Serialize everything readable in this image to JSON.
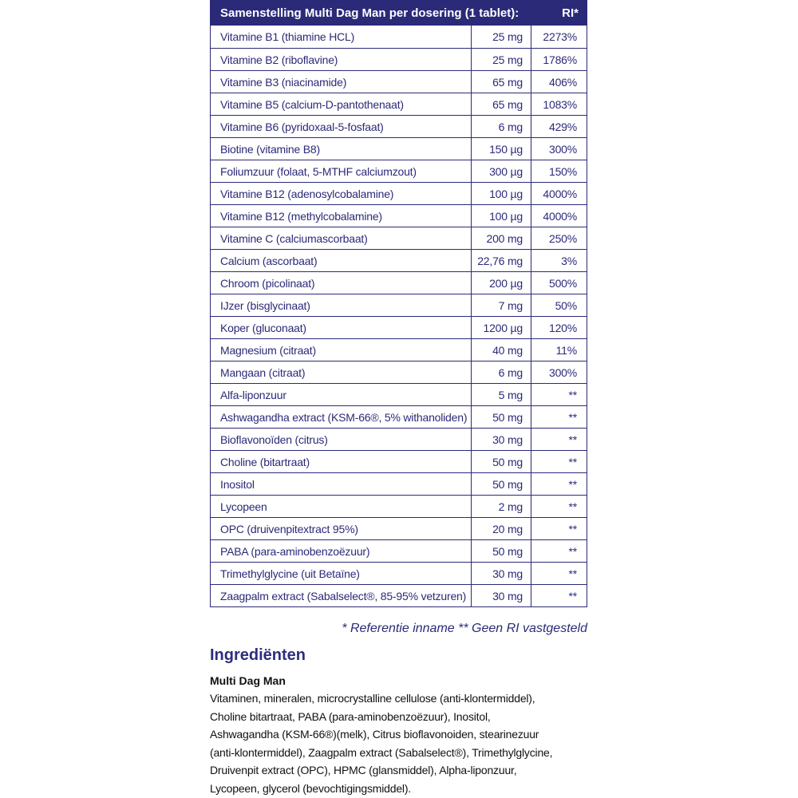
{
  "table": {
    "header": [
      "Samenstelling Multi Dag Man per dosering (1 tablet):",
      "RI*"
    ],
    "rows": [
      [
        "Vitamine B1 (thiamine HCL)",
        "25 mg",
        "2273%"
      ],
      [
        "Vitamine B2 (riboflavine)",
        "25 mg",
        "1786%"
      ],
      [
        "Vitamine B3 (niacinamide)",
        "65 mg",
        "406%"
      ],
      [
        "Vitamine B5 (calcium-D-pantothenaat)",
        "65 mg",
        "1083%"
      ],
      [
        "Vitamine B6 (pyridoxaal-5-fosfaat)",
        "6 mg",
        "429%"
      ],
      [
        "Biotine (vitamine B8)",
        "150 µg",
        "300%"
      ],
      [
        "Foliumzuur (folaat, 5-MTHF calciumzout)",
        "300 µg",
        "150%"
      ],
      [
        "Vitamine B12 (adenosylcobalamine)",
        "100 µg",
        "4000%"
      ],
      [
        "Vitamine B12 (methylcobalamine)",
        "100 µg",
        "4000%"
      ],
      [
        "Vitamine C (calciumascorbaat)",
        "200 mg",
        "250%"
      ],
      [
        "Calcium (ascorbaat)",
        "22,76 mg",
        "3%"
      ],
      [
        "Chroom (picolinaat)",
        "200 µg",
        "500%"
      ],
      [
        "IJzer (bisglycinaat)",
        "7 mg",
        "50%"
      ],
      [
        "Koper (gluconaat)",
        "1200 µg",
        "120%"
      ],
      [
        "Magnesium (citraat)",
        "40 mg",
        "11%"
      ],
      [
        "Mangaan (citraat)",
        "6 mg",
        "300%"
      ],
      [
        "Alfa-liponzuur",
        "5 mg",
        "**"
      ],
      [
        "Ashwagandha extract (KSM-66®, 5% withanoliden)",
        "50 mg",
        "**"
      ],
      [
        "Bioflavonoïden (citrus)",
        "30 mg",
        "**"
      ],
      [
        "Choline (bitartraat)",
        "50 mg",
        "**"
      ],
      [
        "Inositol",
        "50 mg",
        "**"
      ],
      [
        "Lycopeen",
        "2 mg",
        "**"
      ],
      [
        "OPC (druivenpitextract 95%)",
        "20 mg",
        "**"
      ],
      [
        "PABA (para-aminobenzoëzuur)",
        "50 mg",
        "**"
      ],
      [
        "Trimethylglycine (uit Betaïne)",
        "30 mg",
        "**"
      ],
      [
        "Zaagpalm extract (Sabalselect®, 85-95% vetzuren)",
        "30 mg",
        "**"
      ]
    ],
    "footnote": "* Referentie inname  ** Geen RI vastgesteld"
  },
  "ingredients": {
    "title": "Ingrediënten",
    "subtitle": "Multi Dag Man",
    "lines": [
      "Vitaminen, mineralen, microcrystalline cellulose (anti-klontermiddel),",
      "Choline bitartraat, PABA (para-aminobenzoëzuur), Inositol,",
      "Ashwagandha (KSM-66®)(melk), Citrus bioflavonoiden, stearinezuur",
      "(anti-klontermiddel), Zaagpalm extract (Sabalselect®), Trimethylglycine,",
      "Druivenpit extract (OPC), HPMC (glansmiddel), Alpha-liponzuur,",
      "Lycopeen, glycerol (bevochtigingsmiddel)."
    ]
  }
}
